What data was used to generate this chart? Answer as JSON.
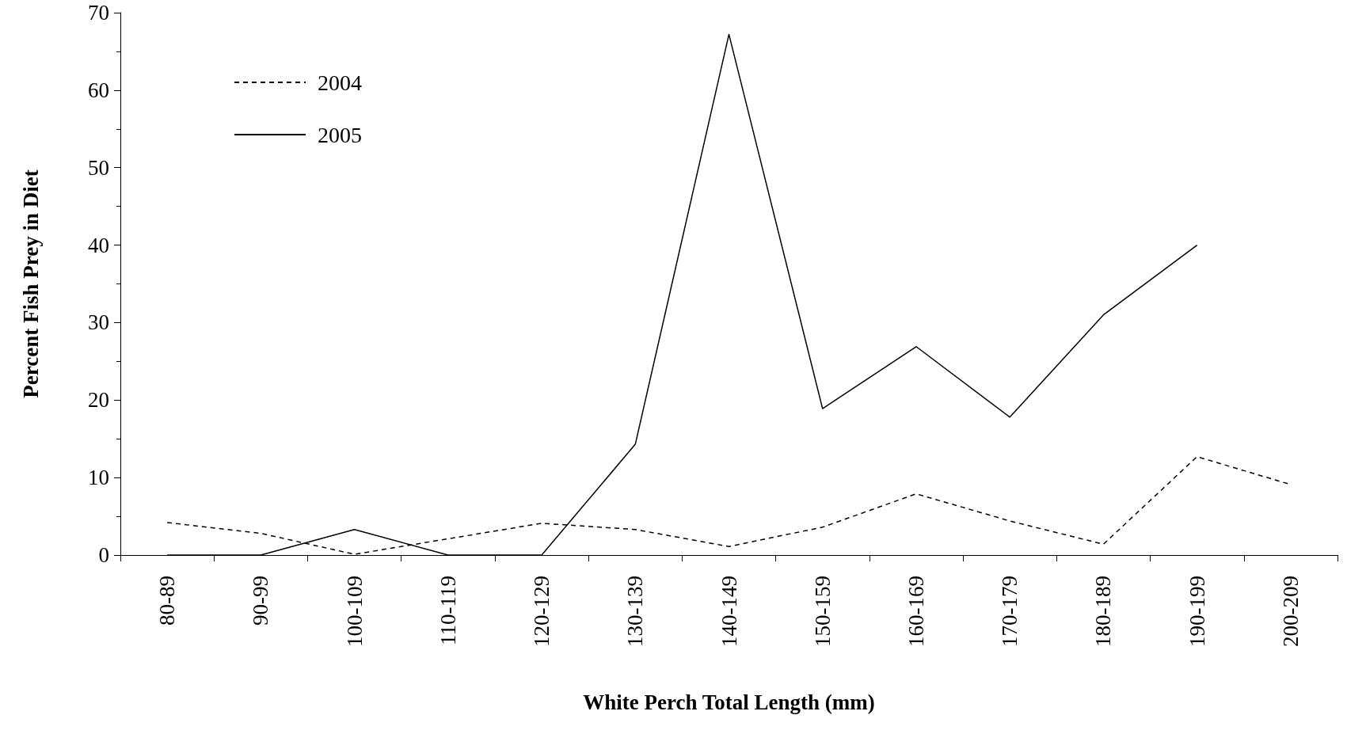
{
  "chart_data": {
    "type": "line",
    "xlabel": "White Perch Total Length (mm)",
    "ylabel": "Percent Fish Prey in Diet",
    "categories": [
      "80-89",
      "90-99",
      "100-109",
      "110-119",
      "120-129",
      "130-139",
      "140-149",
      "150-159",
      "160-169",
      "170-179",
      "180-189",
      "190-199",
      "200-209"
    ],
    "series": [
      {
        "name": "2004",
        "color": "#000000",
        "line_style": "dashed",
        "values": [
          4.2,
          2.8,
          0.1,
          2.1,
          4.1,
          3.3,
          1.1,
          3.6,
          7.9,
          4.4,
          1.4,
          12.7,
          9.1
        ]
      },
      {
        "name": "2005",
        "color": "#000000",
        "line_style": "solid",
        "values": [
          0,
          0,
          3.3,
          0,
          0,
          14.3,
          67.2,
          18.9,
          26.9,
          17.8,
          31,
          40,
          null
        ]
      }
    ],
    "ylim": [
      0,
      70
    ],
    "yticks": [
      0,
      10,
      20,
      30,
      40,
      50,
      60,
      70
    ],
    "grid": false,
    "legend": "top left",
    "marker": "none"
  }
}
